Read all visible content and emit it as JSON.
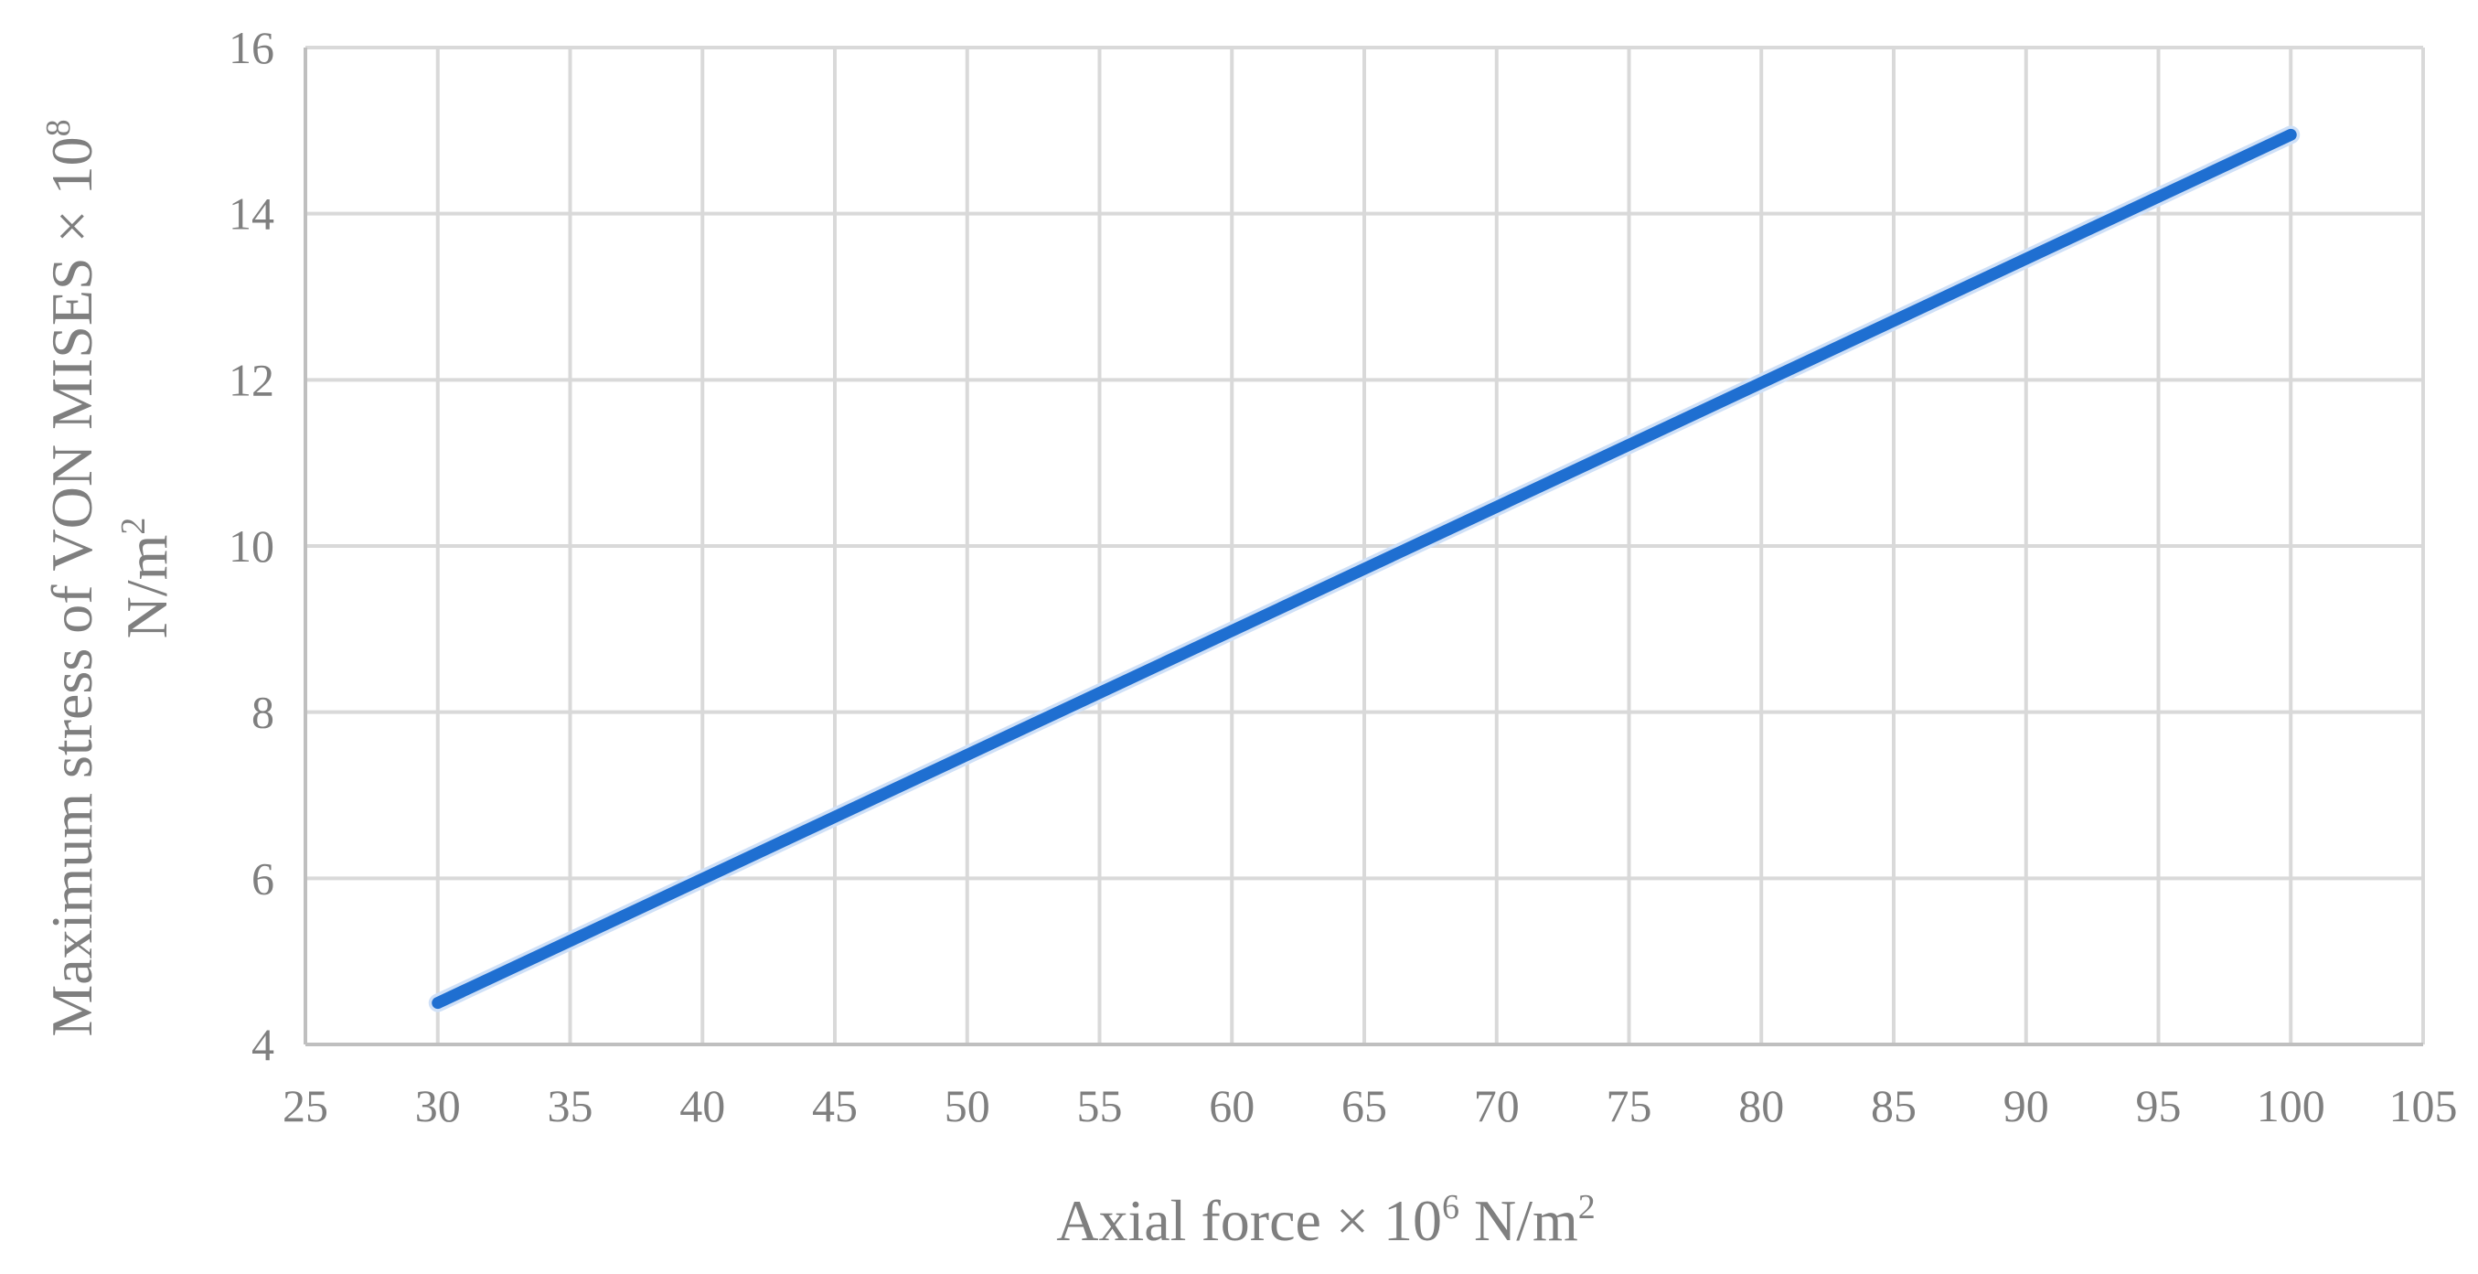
{
  "chart_data": {
    "type": "line",
    "title": "",
    "xlabel": {
      "prefix": "Axial force × 10",
      "exponent": "6",
      "unit_base": " N/m",
      "unit_exponent": "2"
    },
    "ylabel": {
      "line1_prefix": "Maximum stress of VON MISES × 10",
      "line1_exponent": "8",
      "line2_base": "N/m",
      "line2_exponent": "2"
    },
    "xlim": [
      25,
      105
    ],
    "ylim": [
      4,
      16
    ],
    "xticks": [
      25,
      30,
      35,
      40,
      45,
      50,
      55,
      60,
      65,
      70,
      75,
      80,
      85,
      90,
      95,
      100,
      105
    ],
    "yticks": [
      4,
      6,
      8,
      10,
      12,
      14,
      16
    ],
    "grid": true,
    "legend": "none",
    "series": [
      {
        "color": "#1f6fd1",
        "x": [
          30,
          100
        ],
        "y": [
          4.5,
          14.95
        ]
      }
    ]
  }
}
